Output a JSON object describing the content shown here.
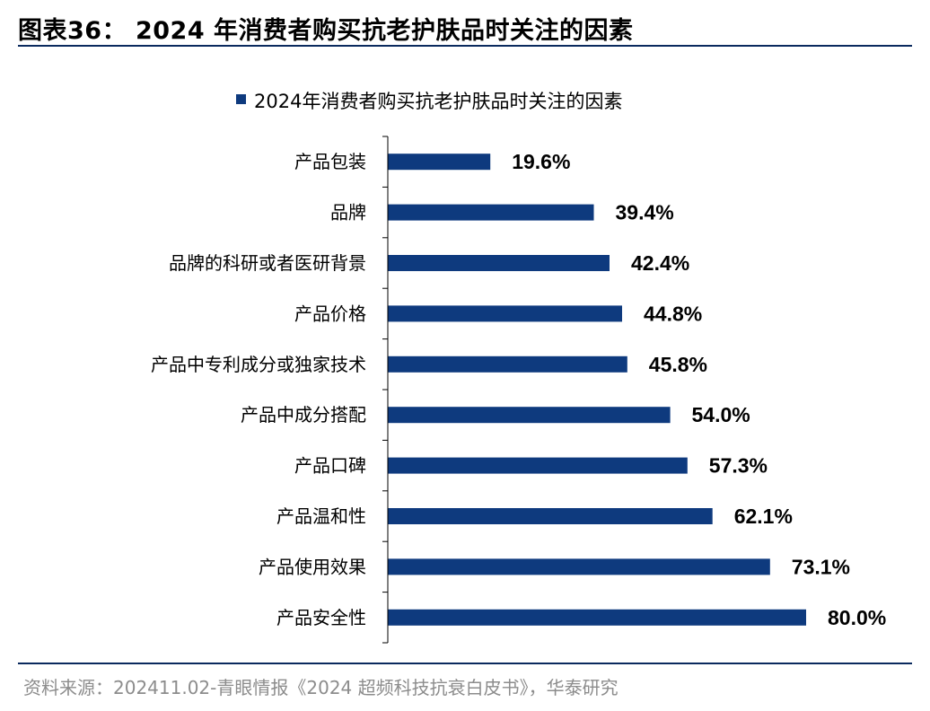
{
  "figure": {
    "title": "图表36： 2024 年消费者购买抗老护肤品时关注的因素",
    "source": "资料来源：202411.02-青眼情报《2024 超频科技抗衰白皮书》，华泰研究"
  },
  "colors": {
    "bar": "#0e3a7e",
    "rule": "#0a2a5e",
    "axis": "#000000"
  },
  "chart_data": {
    "type": "bar",
    "orientation": "horizontal",
    "categories": [
      "产品包装",
      "品牌",
      "品牌的科研或者医研背景",
      "产品价格",
      "产品中专利成分或独家技术",
      "产品中成分搭配",
      "产品口碑",
      "产品温和性",
      "产品使用效果",
      "产品安全性"
    ],
    "series": [
      {
        "name": "2024年消费者购买抗老护肤品时关注的因素",
        "values": [
          19.6,
          39.4,
          42.4,
          44.8,
          45.8,
          54.0,
          57.3,
          62.1,
          73.1,
          80.0
        ],
        "labels": [
          "19.6%",
          "39.4%",
          "42.4%",
          "44.8%",
          "45.8%",
          "54.0%",
          "57.3%",
          "62.1%",
          "73.1%",
          "80.0%"
        ]
      }
    ],
    "unit": "%",
    "xlim": [
      0,
      80
    ],
    "grid": false,
    "legend": "top-center"
  }
}
